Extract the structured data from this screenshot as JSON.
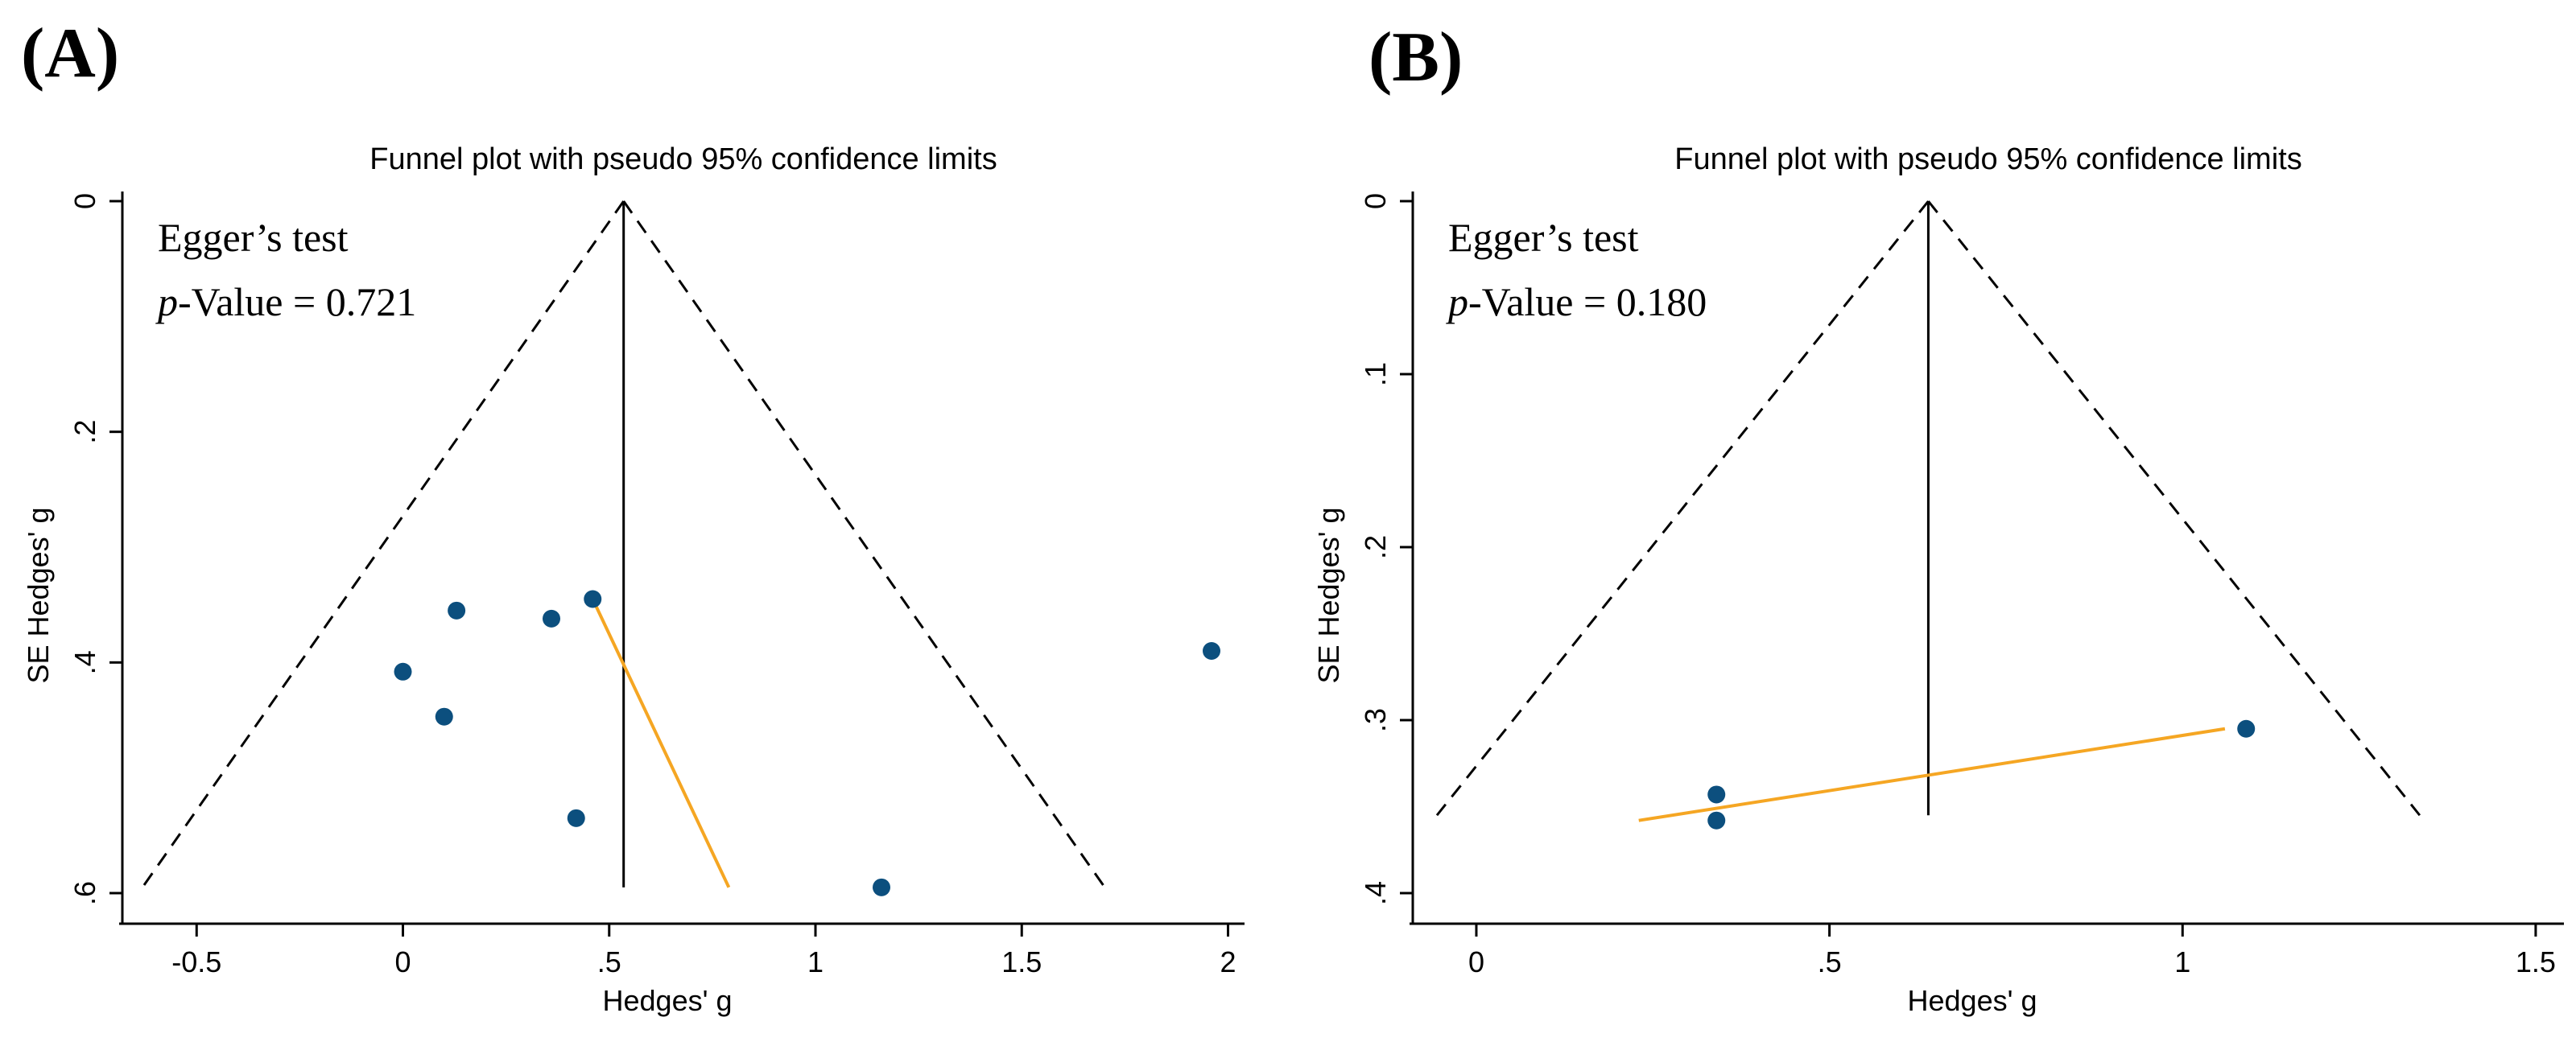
{
  "chart_data": [
    {
      "panel": "(A)",
      "type": "scatter",
      "title": "Funnel plot with pseudo 95% confidence limits",
      "xlabel": "Hedges' g",
      "ylabel": "SE Hedges' g",
      "xlim": [
        -0.68,
        2.04
      ],
      "ylim": [
        0,
        0.6
      ],
      "y_inverted": true,
      "xticks": [
        -0.5,
        0,
        0.5,
        1,
        1.5,
        2
      ],
      "xtick_labels": [
        "-0.5",
        "0",
        ".5",
        "1",
        "1.5",
        "2"
      ],
      "yticks": [
        0,
        0.2,
        0.4,
        0.6
      ],
      "ytick_labels": [
        "0",
        ".2",
        ".4",
        ".6"
      ],
      "annotation": {
        "line1": "Egger’s test",
        "p_prefix": "p",
        "p_rest": "-Value = 0.721"
      },
      "pooled_effect": 0.535,
      "funnel_se_max": 0.595,
      "points": [
        {
          "x": 0.0,
          "y": 0.408
        },
        {
          "x": 0.1,
          "y": 0.447
        },
        {
          "x": 0.13,
          "y": 0.355
        },
        {
          "x": 0.36,
          "y": 0.362
        },
        {
          "x": 0.46,
          "y": 0.345
        },
        {
          "x": 0.42,
          "y": 0.535
        },
        {
          "x": 1.16,
          "y": 0.595
        },
        {
          "x": 1.96,
          "y": 0.39
        }
      ],
      "egger_line": {
        "x1": 0.46,
        "y1": 0.345,
        "x2": 0.79,
        "y2": 0.595
      },
      "colors": {
        "points": "#0C4F7E",
        "egger": "#F5A623"
      }
    },
    {
      "panel": "(B)",
      "type": "scatter",
      "title": "Funnel plot with pseudo 95% confidence limits",
      "xlabel": "Hedges' g",
      "ylabel": "SE Hedges' g",
      "xlim": [
        -0.09,
        1.54
      ],
      "ylim": [
        0,
        0.4
      ],
      "y_inverted": true,
      "xticks": [
        0,
        0.5,
        1,
        1.5
      ],
      "xtick_labels": [
        "0",
        ".5",
        "1",
        "1.5"
      ],
      "yticks": [
        0,
        0.1,
        0.2,
        0.3,
        0.4
      ],
      "ytick_labels": [
        "0",
        ".1",
        ".2",
        ".3",
        ".4"
      ],
      "annotation": {
        "line1": "Egger’s test",
        "p_prefix": "p",
        "p_rest": "-Value = 0.180"
      },
      "pooled_effect": 0.64,
      "funnel_se_max": 0.355,
      "points": [
        {
          "x": 0.34,
          "y": 0.343
        },
        {
          "x": 0.34,
          "y": 0.358
        },
        {
          "x": 1.09,
          "y": 0.305
        }
      ],
      "egger_line": {
        "x1": 0.23,
        "y1": 0.358,
        "x2": 1.06,
        "y2": 0.305
      },
      "colors": {
        "points": "#0C4F7E",
        "egger": "#F5A623"
      }
    }
  ]
}
